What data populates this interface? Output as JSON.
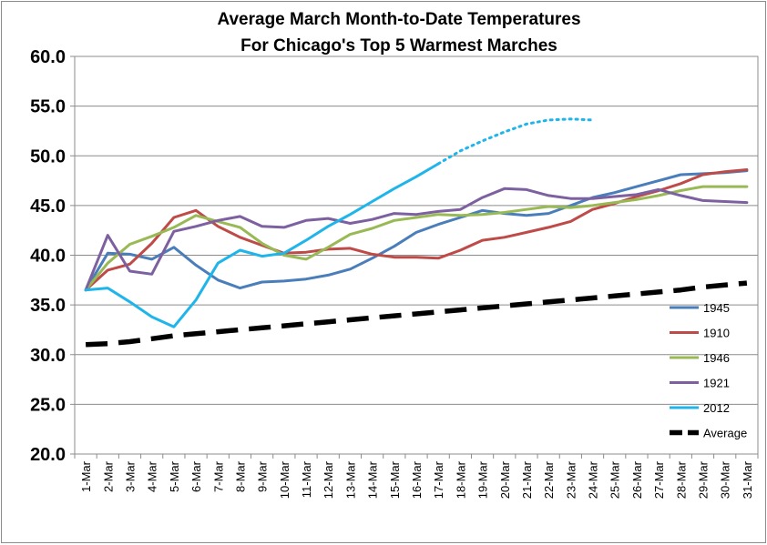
{
  "chart_data": {
    "type": "line",
    "title": "Average March Month-to-Date Temperatures",
    "subtitle": "For Chicago's Top 5 Warmest Marches",
    "xlabel": "",
    "ylabel": "",
    "ylim": [
      20,
      60
    ],
    "yticks": [
      "20.0",
      "25.0",
      "30.0",
      "35.0",
      "40.0",
      "45.0",
      "50.0",
      "55.0",
      "60.0"
    ],
    "grid": "horizontal",
    "legend_position": "right",
    "categories": [
      "1-Mar",
      "2-Mar",
      "3-Mar",
      "4-Mar",
      "5-Mar",
      "6-Mar",
      "7-Mar",
      "8-Mar",
      "9-Mar",
      "10-Mar",
      "11-Mar",
      "12-Mar",
      "13-Mar",
      "14-Mar",
      "15-Mar",
      "16-Mar",
      "17-Mar",
      "18-Mar",
      "19-Mar",
      "20-Mar",
      "21-Mar",
      "22-Mar",
      "23-Mar",
      "24-Mar",
      "25-Mar",
      "26-Mar",
      "27-Mar",
      "28-Mar",
      "29-Mar",
      "30-Mar",
      "31-Mar"
    ],
    "series": [
      {
        "name": "1945",
        "color": "#4a7ebb",
        "style": "solid",
        "values": [
          36.5,
          40.2,
          40.1,
          39.6,
          40.8,
          39.0,
          37.5,
          36.7,
          37.3,
          37.4,
          37.6,
          38.0,
          38.6,
          39.7,
          40.9,
          42.3,
          43.1,
          43.8,
          44.5,
          44.2,
          44.0,
          44.2,
          45.0,
          45.8,
          46.3,
          46.9,
          47.5,
          48.1,
          48.2,
          48.3,
          48.5
        ]
      },
      {
        "name": "1910",
        "color": "#be4b48",
        "style": "solid",
        "values": [
          36.5,
          38.5,
          39.1,
          41.2,
          43.8,
          44.5,
          42.9,
          41.8,
          41.0,
          40.2,
          40.3,
          40.6,
          40.7,
          40.1,
          39.8,
          39.8,
          39.7,
          40.5,
          41.5,
          41.8,
          42.3,
          42.8,
          43.4,
          44.6,
          45.2,
          45.9,
          46.5,
          47.2,
          48.1,
          48.4,
          48.6
        ]
      },
      {
        "name": "1946",
        "color": "#98b954",
        "style": "solid",
        "values": [
          36.5,
          39.2,
          41.1,
          41.9,
          42.8,
          44.0,
          43.4,
          42.8,
          41.2,
          40.0,
          39.6,
          40.8,
          42.1,
          42.7,
          43.5,
          43.8,
          44.1,
          44.0,
          44.1,
          44.3,
          44.6,
          44.9,
          44.8,
          45.0,
          45.3,
          45.6,
          46.0,
          46.5,
          46.9,
          46.9,
          46.9
        ]
      },
      {
        "name": "1921",
        "color": "#7d60a0",
        "style": "solid",
        "values": [
          36.5,
          42.0,
          38.4,
          38.1,
          42.4,
          42.9,
          43.5,
          43.9,
          42.9,
          42.8,
          43.5,
          43.7,
          43.2,
          43.6,
          44.2,
          44.1,
          44.4,
          44.6,
          45.8,
          46.7,
          46.6,
          46.0,
          45.7,
          45.7,
          45.9,
          46.1,
          46.6,
          46.0,
          45.5,
          45.4,
          45.3
        ]
      },
      {
        "name": "2012",
        "color": "#1fb5ea",
        "style": "solid",
        "values": [
          36.5,
          36.7,
          35.3,
          33.8,
          32.8,
          35.5,
          39.2,
          40.5,
          39.9,
          40.2,
          41.5,
          42.9,
          44.1,
          45.4,
          46.7,
          47.9,
          49.2,
          null,
          null,
          null,
          null,
          null,
          null,
          null,
          null,
          null,
          null,
          null,
          null,
          null,
          null
        ],
        "projection": [
          null,
          null,
          null,
          null,
          null,
          null,
          null,
          null,
          null,
          null,
          null,
          null,
          null,
          null,
          null,
          null,
          49.2,
          50.5,
          51.5,
          52.4,
          53.2,
          53.6,
          53.7,
          53.6,
          null,
          null,
          null,
          null,
          null,
          null,
          null
        ]
      },
      {
        "name": "Average",
        "color": "#000000",
        "style": "dashed",
        "values": [
          31.0,
          31.1,
          31.3,
          31.6,
          31.9,
          32.1,
          32.3,
          32.5,
          32.7,
          32.9,
          33.1,
          33.3,
          33.5,
          33.7,
          33.9,
          34.1,
          34.3,
          34.5,
          34.7,
          34.9,
          35.1,
          35.3,
          35.5,
          35.7,
          35.9,
          36.1,
          36.3,
          36.5,
          36.8,
          37.0,
          37.2
        ]
      }
    ]
  }
}
